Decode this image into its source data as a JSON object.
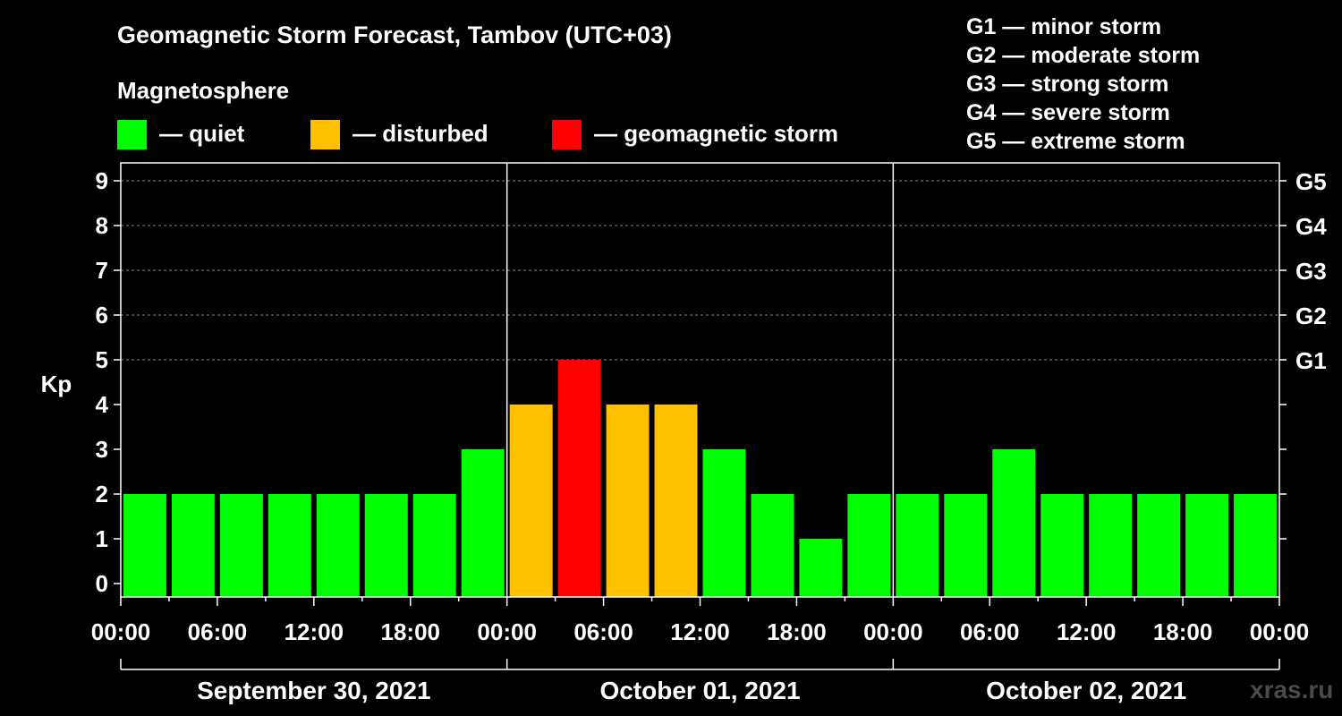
{
  "title": "Geomagnetic Storm Forecast, Tambov (UTC+03)",
  "subtitle": "Magnetosphere",
  "legend": [
    {
      "label": "— quiet",
      "color": "#00ff00"
    },
    {
      "label": "— disturbed",
      "color": "#ffc000"
    },
    {
      "label": "— geomagnetic storm",
      "color": "#ff0000"
    }
  ],
  "g_scale_legend": [
    "G1 — minor storm",
    "G2 — moderate storm",
    "G3 — strong storm",
    "G4 — severe storm",
    "G5 — extreme storm"
  ],
  "watermark": "xras.ru",
  "chart_data": {
    "type": "bar",
    "ylabel": "Kp",
    "ylim": [
      0,
      9
    ],
    "yticks": [
      "0",
      "1",
      "2",
      "3",
      "4",
      "5",
      "6",
      "7",
      "8",
      "9"
    ],
    "right_ticks": [
      {
        "value": 5,
        "label": "G1"
      },
      {
        "value": 6,
        "label": "G2"
      },
      {
        "value": 7,
        "label": "G3"
      },
      {
        "value": 8,
        "label": "G4"
      },
      {
        "value": 9,
        "label": "G5"
      }
    ],
    "grid": "dashed horizontal lines at Kp 5–9",
    "x_tick_labels": [
      "00:00",
      "06:00",
      "12:00",
      "18:00",
      "00:00",
      "06:00",
      "12:00",
      "18:00",
      "00:00",
      "06:00",
      "12:00",
      "18:00",
      "00:00"
    ],
    "days": [
      "September 30, 2021",
      "October 01, 2021",
      "October 02, 2021"
    ],
    "bar_interval_hours": 3,
    "values": [
      2,
      2,
      2,
      2,
      2,
      2,
      2,
      3,
      4,
      5,
      4,
      4,
      3,
      2,
      1,
      2,
      2,
      2,
      3,
      2,
      2,
      2,
      2,
      2
    ],
    "colors": {
      "quiet": "#00ff00",
      "disturbed": "#ffc000",
      "storm": "#ff0000"
    }
  }
}
